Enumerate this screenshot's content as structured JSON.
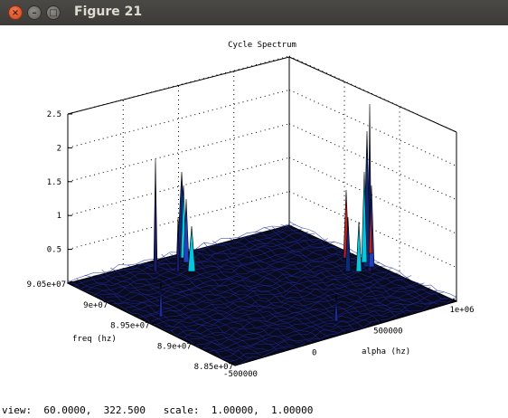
{
  "window": {
    "title": "Figure 21",
    "close_glyph": "×",
    "minimize_glyph": "–",
    "maximize_glyph": "□"
  },
  "chart_data": {
    "type": "surface3d",
    "title": "Cycle Spectrum",
    "xlabel": "alpha (hz)",
    "ylabel": "freq (hz)",
    "z_ticks": [
      "2.5",
      "2",
      "1.5",
      "1",
      "0.5"
    ],
    "z_range": [
      0,
      2.5
    ],
    "freq_ticks": [
      "9.05e+07",
      "9e+07",
      "8.95e+07",
      "8.9e+07",
      "8.85e+07"
    ],
    "alpha_ticks": [
      "1e+06",
      "500000",
      "0",
      "-500000"
    ],
    "view": [
      60.0,
      322.5
    ],
    "grid": true,
    "colors": {
      "surface": "#0a0a3a",
      "wire": "#1a2a9a",
      "peak": "#00c8e0",
      "peak_hot": "#c02020"
    }
  },
  "status": {
    "text": "view:  60.0000,  322.500   scale:  1.00000,  1.00000"
  }
}
